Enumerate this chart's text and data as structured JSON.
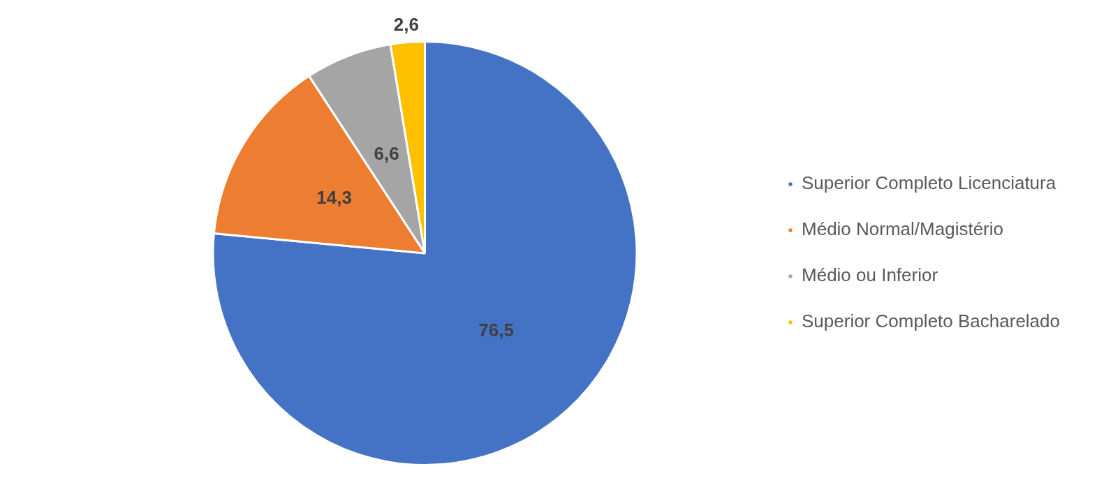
{
  "chart_data": {
    "type": "pie",
    "categories": [
      "Superior Completo Licenciatura",
      "Médio Normal/Magistério",
      "Médio ou Inferior",
      "Superior Completo Bacharelado"
    ],
    "values": [
      76.5,
      14.3,
      6.6,
      2.6
    ],
    "colors": [
      "#4472c4",
      "#ed7d31",
      "#a5a5a5",
      "#ffc000"
    ],
    "value_labels": [
      "76,5",
      "14,3",
      "6,6",
      "2,6"
    ],
    "legend": "right"
  }
}
